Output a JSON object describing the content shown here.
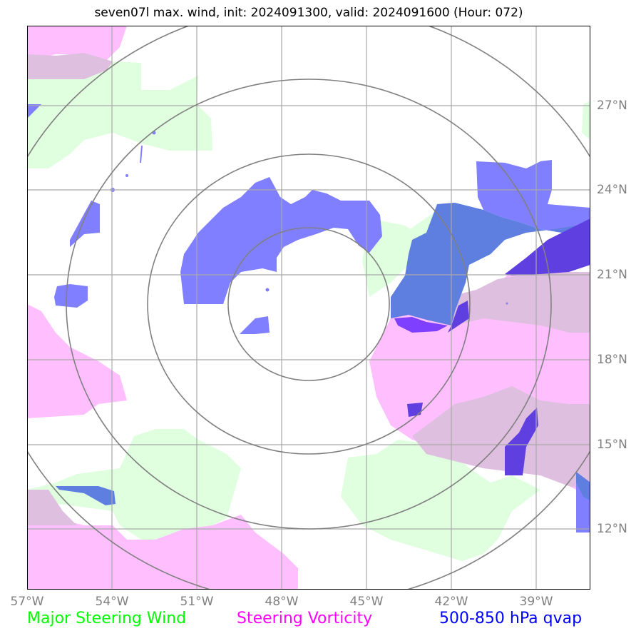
{
  "title": "seven07l max. wind, init: 2024091300, valid: 2024091600 (Hour: 072)",
  "map": {
    "lon_ticks": [
      "57°W",
      "54°W",
      "51°W",
      "48°W",
      "45°W",
      "42°W",
      "39°W"
    ],
    "lat_ticks": [
      "27°N",
      "24°N",
      "21°N",
      "18°N",
      "15°N",
      "12°N"
    ],
    "grid_color": "#a9a9a9",
    "ring_color": "#808080"
  },
  "legend": {
    "wind": {
      "label": "Major Steering Wind",
      "color": "#00ff00"
    },
    "vorticity": {
      "label": "Steering Vorticity",
      "color": "#ff00ff"
    },
    "qvap": {
      "label": "500-850 hPa qvap",
      "color": "#0000ff"
    }
  },
  "layers": {
    "wind_fill": "#dfffdf",
    "vort_fill": "#ffbfff",
    "overlap_fill": "#dfbfdf",
    "qvap_fill": "#7f7fff",
    "qvap_dark": "#5e7fdf",
    "qvap_deep": "#5f3fdf",
    "qvap_violet": "#7f3fff"
  }
}
